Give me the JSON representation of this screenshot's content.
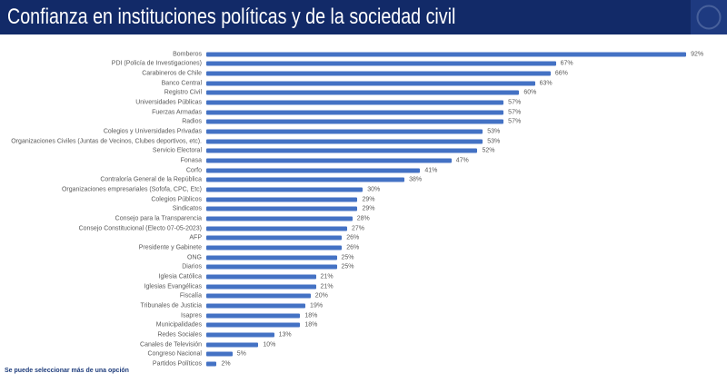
{
  "header": {
    "title": "Confianza en instituciones políticas y de la sociedad civil"
  },
  "footnote": {
    "text": "Se puede seleccionar más de una opción"
  },
  "colors": {
    "header_bg": "#122a68",
    "logo_bg": "#1e3a80",
    "bar": "#4472C4",
    "category_label": "#595959",
    "value_label": "#595959",
    "footnote": "#1f3d7c"
  },
  "chart_data": {
    "type": "bar",
    "orientation": "horizontal",
    "title": "Confianza en instituciones políticas y de la sociedad civil",
    "unit": "%",
    "xlim": [
      0,
      100
    ],
    "grid": false,
    "legend": false,
    "value_labels_shown": true,
    "note": "Se puede seleccionar más de una opción",
    "categories": [
      "Bomberos",
      "PDI (Policía de Investigaciones)",
      "Carabineros de Chile",
      "Banco Central",
      "Registro Civil",
      "Universidades Públicas",
      "Fuerzas Armadas",
      "Radios",
      "Colegios y Universidades Privadas",
      "Organizaciones Civiles (Juntas de Vecinos, Clubes deportivos, etc).",
      "Servicio Electoral",
      "Fonasa",
      "Corfo",
      "Contraloría General de la República",
      "Organizaciones empresariales (Sofofa, CPC, Etc)",
      "Colegios Públicos",
      "Sindicatos",
      "Consejo para la Transparencia",
      "Consejo Constitucional (Electo 07-05-2023)",
      "AFP",
      "Presidente y Gabinete",
      "ONG",
      "Diarios",
      "Iglesia Católica",
      "Iglesias Evangélicas",
      "Fiscalía",
      "Tribunales de Justicia",
      "Isapres",
      "Municipalidades",
      "Redes Sociales",
      "Canales de Televisión",
      "Congreso Nacional",
      "Partidos Políticos"
    ],
    "values": [
      92,
      67,
      66,
      63,
      60,
      57,
      57,
      57,
      53,
      53,
      52,
      47,
      41,
      38,
      30,
      29,
      29,
      28,
      27,
      26,
      26,
      25,
      25,
      21,
      21,
      20,
      19,
      18,
      18,
      13,
      10,
      5,
      2
    ]
  }
}
